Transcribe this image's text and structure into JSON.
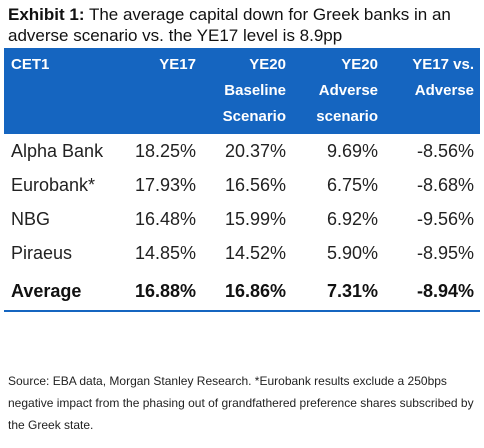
{
  "title": {
    "exhibit_label": "Exhibit 1:",
    "text": "The average capital down for Greek banks in an adverse scenario vs. the YE17 level is 8.9pp"
  },
  "table": {
    "headers": [
      "CET1",
      "YE17",
      "YE20 Baseline Scenario",
      "YE20 Adverse scenario",
      "YE17 vs. Adverse"
    ],
    "rows": [
      {
        "bank": "Alpha Bank",
        "ye17": "18.25%",
        "baseline": "20.37%",
        "adverse": "9.69%",
        "diff": "-8.56%"
      },
      {
        "bank": "Eurobank*",
        "ye17": "17.93%",
        "baseline": "16.56%",
        "adverse": "6.75%",
        "diff": "-8.68%"
      },
      {
        "bank": "NBG",
        "ye17": "16.48%",
        "baseline": "15.99%",
        "adverse": "6.92%",
        "diff": "-9.56%"
      },
      {
        "bank": "Piraeus",
        "ye17": "14.85%",
        "baseline": "14.52%",
        "adverse": "5.90%",
        "diff": "-8.95%"
      }
    ],
    "average": {
      "bank": "Average",
      "ye17": "16.88%",
      "baseline": "16.86%",
      "adverse": "7.31%",
      "diff": "-8.94%"
    },
    "colors": {
      "header_bg": "#1565c0",
      "header_text": "#ffffff"
    }
  },
  "source": "Source: EBA data, Morgan Stanley Research. *Eurobank results exclude a 250bps negative impact from the phasing out of grandfathered preference shares subscribed by the Greek state."
}
